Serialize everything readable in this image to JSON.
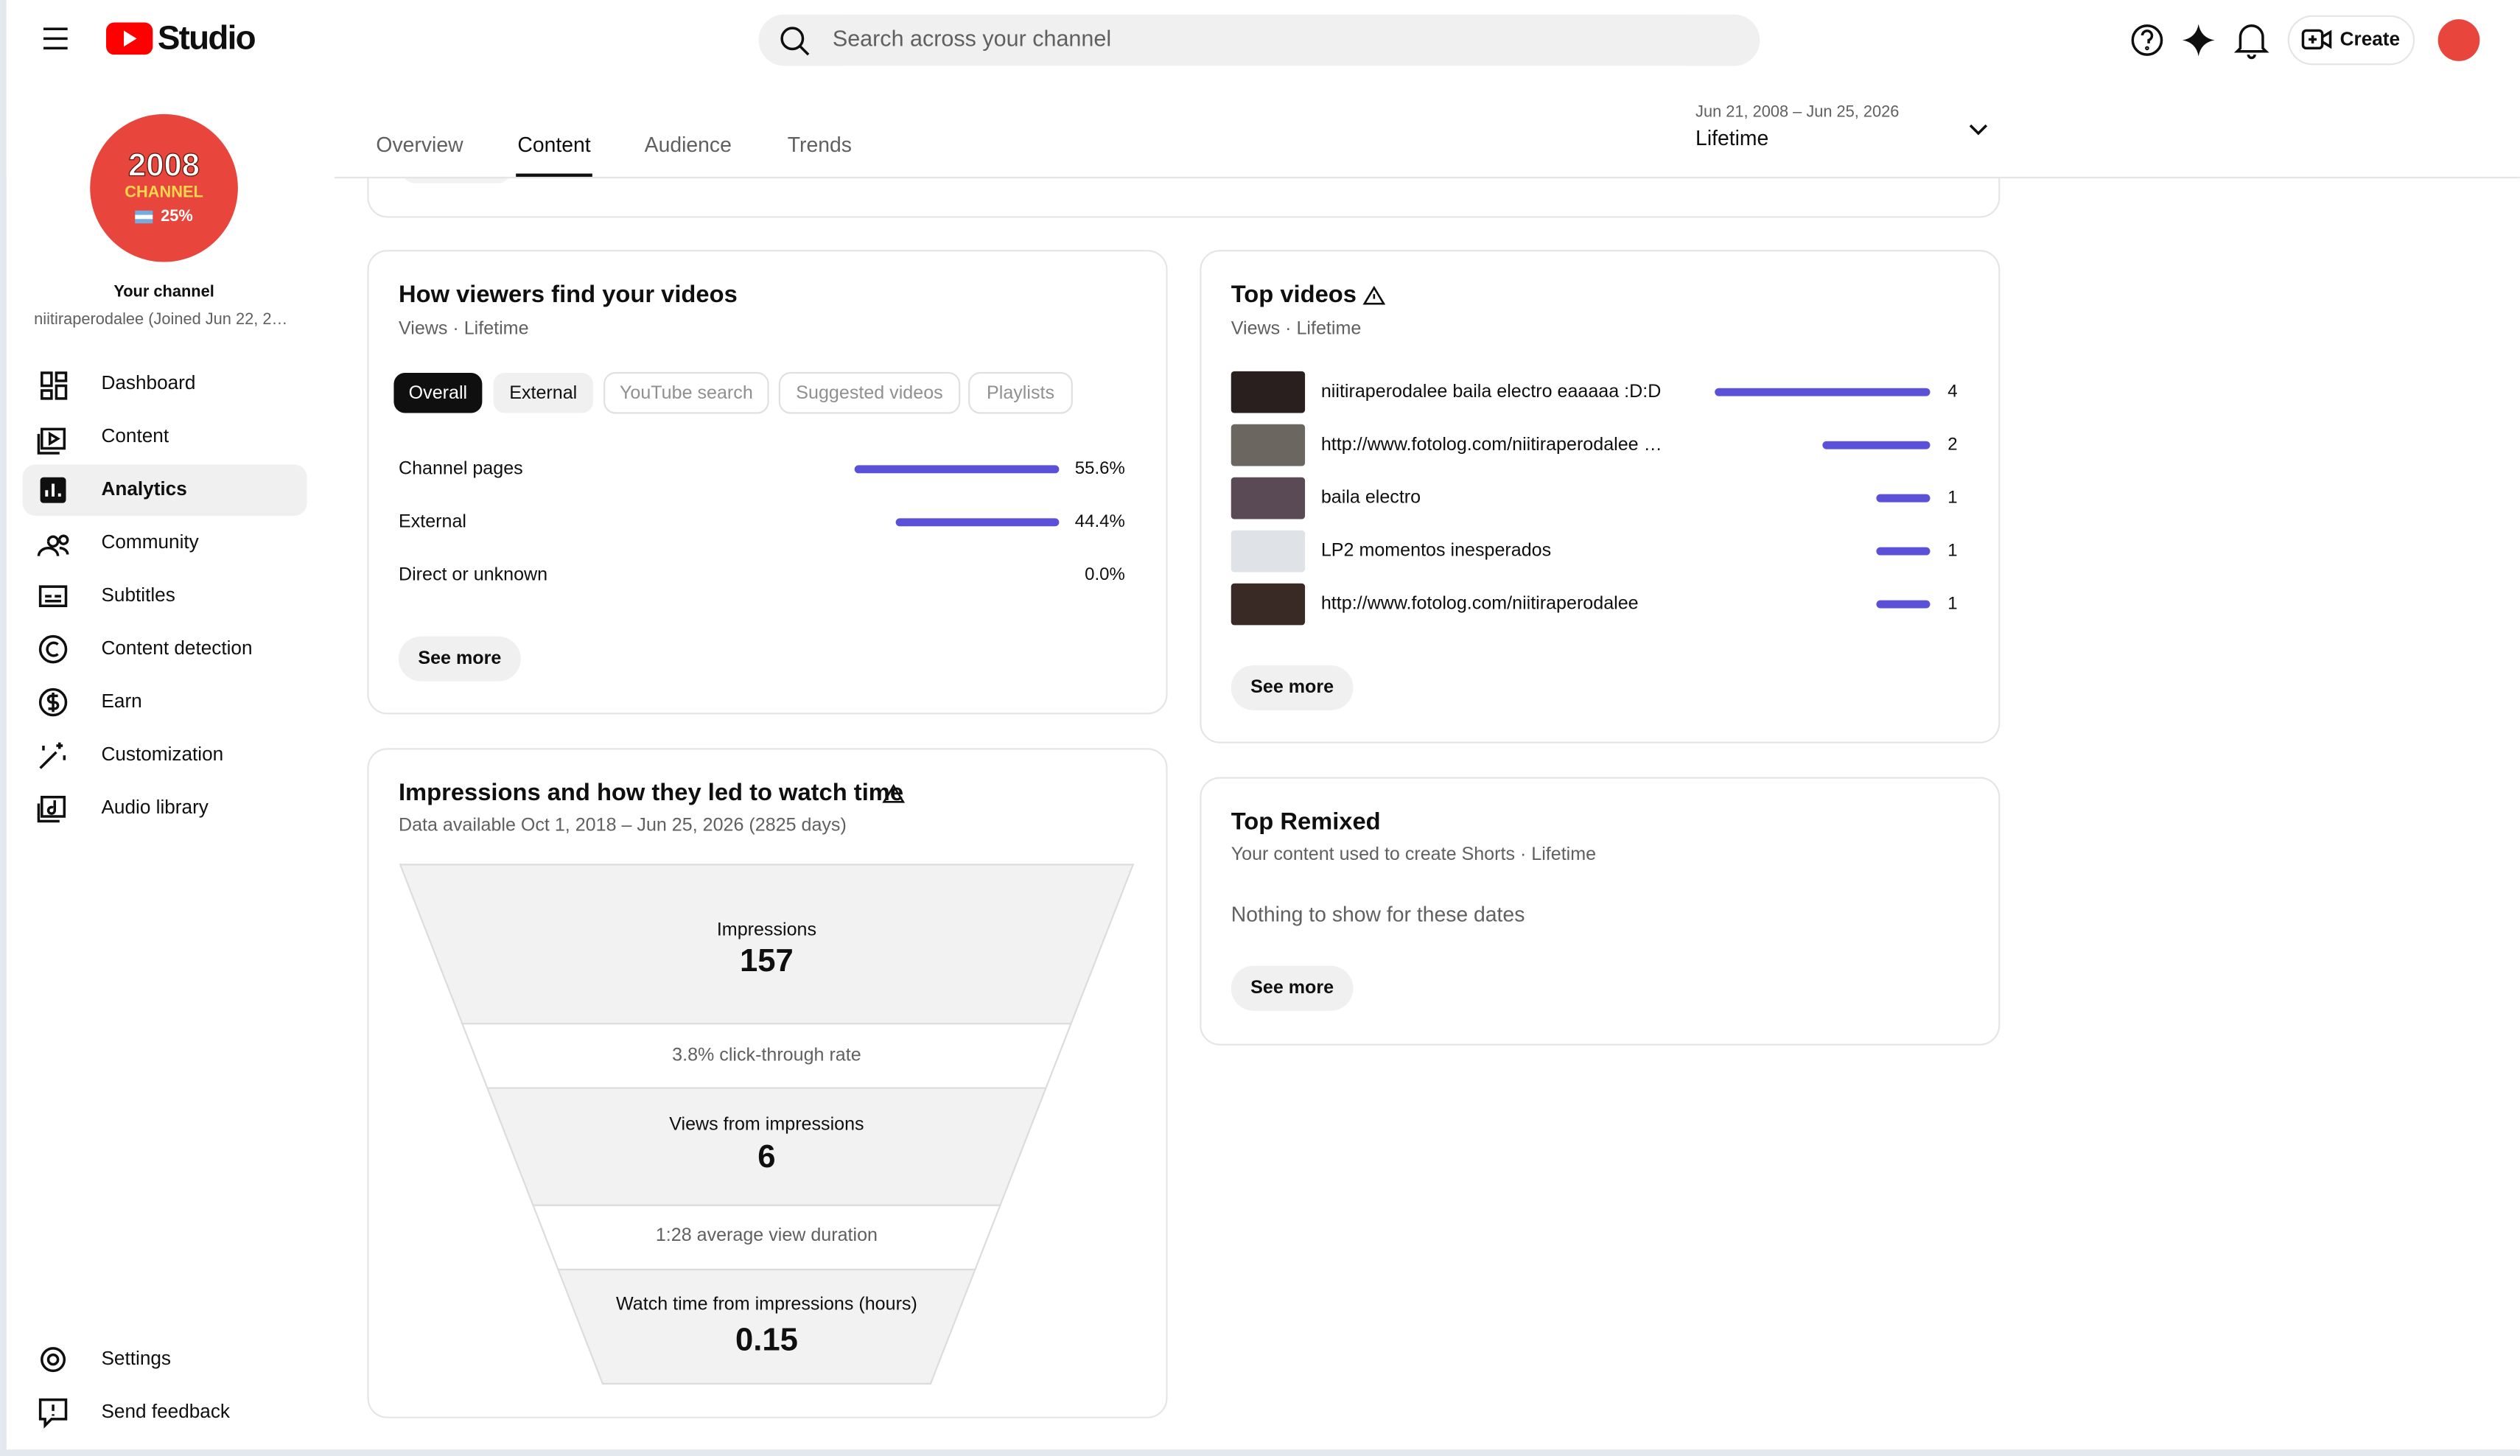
{
  "header": {
    "logo": "Studio",
    "search_placeholder": "Search across your channel",
    "create": "Create"
  },
  "sidebar": {
    "avatar": [
      "2008",
      "CHANNEL",
      "25%"
    ],
    "channel_label": "Your channel",
    "channel_name": "niitiraperodalee (Joined Jun 22, 2…",
    "nav": [
      "Dashboard",
      "Content",
      "Analytics",
      "Community",
      "Subtitles",
      "Content detection",
      "Earn",
      "Customization",
      "Audio library"
    ],
    "active_nav": 2,
    "footer_nav": [
      "Settings",
      "Send feedback"
    ]
  },
  "tabs": {
    "items": [
      "Overview",
      "Content",
      "Audience",
      "Trends"
    ],
    "active": 1
  },
  "date_range": {
    "range": "Jun 21, 2008 – Jun 25, 2026",
    "period": "Lifetime"
  },
  "traffic_sources": {
    "title": "How viewers find your videos",
    "subtitle": "Views · Lifetime",
    "chips": [
      "Overall",
      "External",
      "YouTube search",
      "Suggested videos",
      "Playlists"
    ],
    "active_chip": 0,
    "rows": [
      {
        "label": "Channel pages",
        "value": 55.6,
        "value_label": "55.6%"
      },
      {
        "label": "External",
        "value": 44.4,
        "value_label": "44.4%"
      },
      {
        "label": "Direct or unknown",
        "value": 0.0,
        "value_label": "0.0%"
      }
    ],
    "see_more": "See more"
  },
  "top_videos": {
    "title": "Top videos",
    "subtitle": "Views · Lifetime",
    "rows": [
      {
        "title": "niitiraperodalee baila electro eaaaaa :D:D",
        "views": 4
      },
      {
        "title": "http://www.fotolog.com/niitiraperodalee …",
        "views": 2
      },
      {
        "title": "baila electro",
        "views": 1
      },
      {
        "title": "LP2 momentos inesperados",
        "views": 1
      },
      {
        "title": "http://www.fotolog.com/niitiraperodalee",
        "views": 1
      }
    ],
    "see_more": "See more"
  },
  "top_remixed": {
    "title": "Top Remixed",
    "subtitle": "Your content used to create Shorts · Lifetime",
    "empty": "Nothing to show for these dates",
    "see_more": "See more"
  },
  "impressions_funnel": {
    "title": "Impressions and how they led to watch time",
    "subtitle": "Data available Oct 1, 2018 – Jun 25, 2026 (2825 days)",
    "stages": [
      {
        "label": "Impressions",
        "value": 157
      },
      {
        "label": "Views from impressions",
        "value": 6
      },
      {
        "label": "Watch time from impressions (hours)",
        "value": 0.15
      }
    ],
    "rates": [
      "3.8% click-through rate",
      "1:28 average view duration"
    ]
  }
}
